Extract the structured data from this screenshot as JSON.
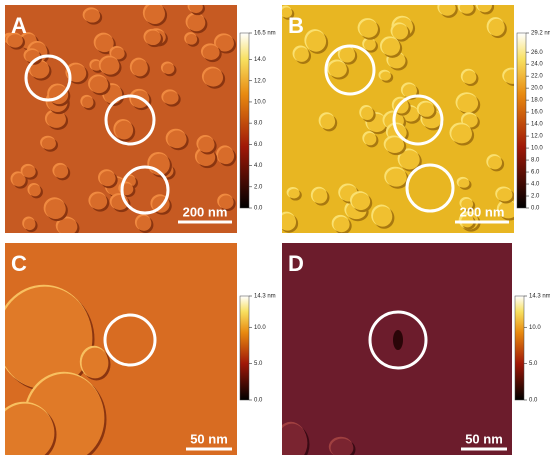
{
  "panels": [
    {
      "label": "A",
      "scale_bar": "200 nm",
      "colorbar": {
        "lim": [
          0,
          16.5
        ],
        "ticks": [
          {
            "value": 0,
            "label": "0.0"
          },
          {
            "value": 2,
            "label": "2.0"
          },
          {
            "value": 4,
            "label": "4.0"
          },
          {
            "value": 6,
            "label": "6.0"
          },
          {
            "value": 8,
            "label": "8.0"
          },
          {
            "value": 10,
            "label": "10.0"
          },
          {
            "value": 12,
            "label": "12.0"
          },
          {
            "value": 14,
            "label": "14.0"
          },
          {
            "value": 16.5,
            "label": "16.5 nm"
          }
        ]
      }
    },
    {
      "label": "B",
      "scale_bar": "200 nm",
      "colorbar": {
        "lim": [
          0,
          29.2
        ],
        "ticks": [
          {
            "value": 0,
            "label": "0.0"
          },
          {
            "value": 2,
            "label": "2.0"
          },
          {
            "value": 4,
            "label": "4.0"
          },
          {
            "value": 6,
            "label": "6.0"
          },
          {
            "value": 8,
            "label": "8.0"
          },
          {
            "value": 10,
            "label": "10.0"
          },
          {
            "value": 12,
            "label": "12.0"
          },
          {
            "value": 14,
            "label": "14.0"
          },
          {
            "value": 16,
            "label": "16.0"
          },
          {
            "value": 18,
            "label": "18.0"
          },
          {
            "value": 20,
            "label": "20.0"
          },
          {
            "value": 22,
            "label": "22.0"
          },
          {
            "value": 24,
            "label": "24.0"
          },
          {
            "value": 26,
            "label": "26.0"
          },
          {
            "value": 29.2,
            "label": "29.2 nm"
          }
        ]
      }
    },
    {
      "label": "C",
      "scale_bar": "50 nm",
      "colorbar": {
        "lim": [
          0,
          14.3
        ],
        "ticks": [
          {
            "value": 0,
            "label": "0.0"
          },
          {
            "value": 5,
            "label": "5.0"
          },
          {
            "value": 10,
            "label": "10.0"
          },
          {
            "value": 14.3,
            "label": "14.3 nm"
          }
        ]
      }
    },
    {
      "label": "D",
      "scale_bar": "50 nm",
      "colorbar": {
        "lim": [
          0,
          14.3
        ],
        "ticks": [
          {
            "value": 0,
            "label": "0.0"
          },
          {
            "value": 5,
            "label": "5.0"
          },
          {
            "value": 10,
            "label": "10.0"
          },
          {
            "value": 14.3,
            "label": "14.3 nm"
          }
        ]
      }
    }
  ]
}
